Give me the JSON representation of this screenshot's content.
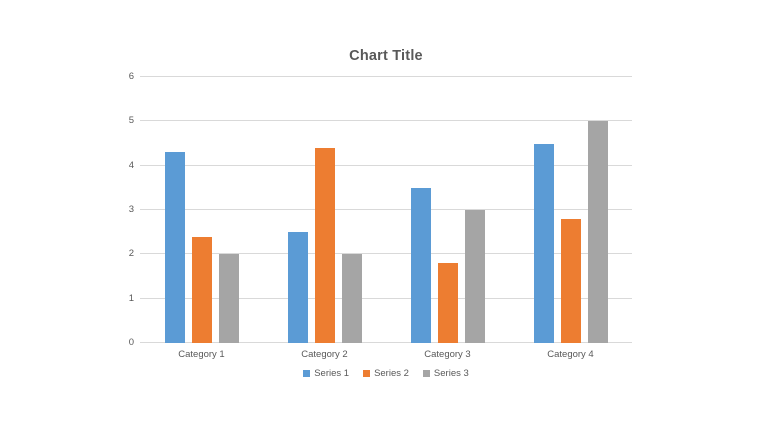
{
  "title": "Chart Title",
  "chart_data": {
    "type": "bar",
    "title": "Chart Title",
    "categories": [
      "Category 1",
      "Category 2",
      "Category 3",
      "Category 4"
    ],
    "series": [
      {
        "name": "Series 1",
        "color": "#5B9BD5",
        "values": [
          4.3,
          2.5,
          3.5,
          4.5
        ]
      },
      {
        "name": "Series 2",
        "color": "#ED7D31",
        "values": [
          2.4,
          4.4,
          1.8,
          2.8
        ]
      },
      {
        "name": "Series 3",
        "color": "#A5A5A5",
        "values": [
          2.0,
          2.0,
          3.0,
          5.0
        ]
      }
    ],
    "xlabel": "",
    "ylabel": "",
    "ylim": [
      0,
      6
    ],
    "ytick_step": 1,
    "ytick_labels": [
      "0",
      "1",
      "2",
      "3",
      "4",
      "5",
      "6"
    ],
    "grid": true,
    "legend_position": "bottom"
  },
  "colors": {
    "text": "#595959",
    "gridline": "#d9d9d9",
    "background": "#ffffff"
  }
}
